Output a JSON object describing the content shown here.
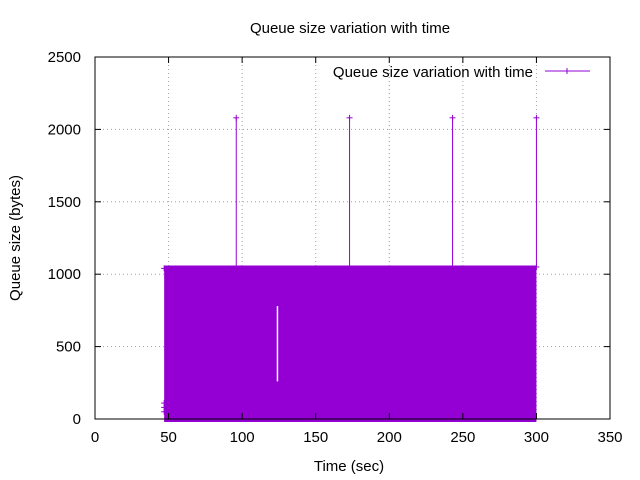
{
  "chart_data": {
    "type": "line",
    "title": "Queue size variation with time",
    "xlabel": "Time (sec)",
    "ylabel": "Queue size (bytes)",
    "xlim": [
      0,
      350
    ],
    "ylim": [
      0,
      2500
    ],
    "xticks": [
      0,
      50,
      100,
      150,
      200,
      250,
      300,
      350
    ],
    "yticks": [
      0,
      500,
      1000,
      1500,
      2000,
      2500
    ],
    "grid": true,
    "legend_position": "top-right",
    "series": [
      {
        "name": "Queue size variation with time",
        "color": "#9400d3",
        "marker": "plus",
        "band": {
          "x_start": 47,
          "x_end": 300,
          "y_min": 0,
          "y_max": 1060
        },
        "gaps": [
          {
            "x": 124,
            "y_from": 260,
            "y_to": 780
          }
        ],
        "start_points": [
          {
            "x": 47,
            "y": 110
          },
          {
            "x": 47,
            "y": 80
          },
          {
            "x": 47,
            "y": 50
          },
          {
            "x": 47,
            "y": 1040
          }
        ],
        "spikes": [
          {
            "x": 96,
            "y": 2080
          },
          {
            "x": 173,
            "y": 2080
          },
          {
            "x": 243,
            "y": 2080
          },
          {
            "x": 300,
            "y": 2080
          }
        ],
        "end_point": {
          "x": 300,
          "y": 1050
        }
      }
    ]
  }
}
